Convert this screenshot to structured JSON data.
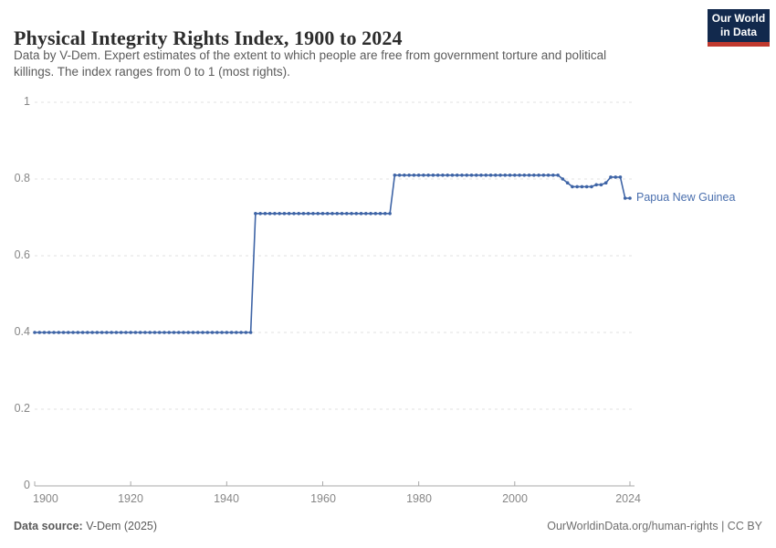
{
  "header": {
    "title": "Physical Integrity Rights Index, 1900 to 2024",
    "subtitle_line1": "Data by V-Dem. Expert estimates of the extent to which people are free from government torture and political",
    "subtitle_line2": "killings. The index ranges from 0 to 1 (most rights).",
    "logo": {
      "line1": "Our World",
      "line2": "in Data"
    }
  },
  "chart_data": {
    "type": "line",
    "title": "Physical Integrity Rights Index, 1900 to 2024",
    "xlabel": "",
    "ylabel": "",
    "x_range": [
      1900,
      2024
    ],
    "ylim": [
      0,
      1
    ],
    "grid": "dashed-horizontal",
    "legend_position": "end-of-line-label",
    "x_axis": {
      "ticks": [
        1900,
        1920,
        1940,
        1960,
        1980,
        2000,
        2024
      ],
      "labels": [
        "1900",
        "1920",
        "1940",
        "1960",
        "1980",
        "2000",
        "2024"
      ]
    },
    "y_axis": {
      "ticks": [
        1,
        0.8,
        0.6,
        0.4,
        0.2,
        0
      ],
      "labels": [
        "1",
        "0.8",
        "0.6",
        "0.4",
        "0.2",
        "0"
      ]
    },
    "series": [
      {
        "name": "Papua New Guinea",
        "color": "#3e64a6",
        "label_color": "#4a6fae",
        "x_start_year": 1900,
        "x_step_years": 1,
        "values": [
          0.4,
          0.4,
          0.4,
          0.4,
          0.4,
          0.4,
          0.4,
          0.4,
          0.4,
          0.4,
          0.4,
          0.4,
          0.4,
          0.4,
          0.4,
          0.4,
          0.4,
          0.4,
          0.4,
          0.4,
          0.4,
          0.4,
          0.4,
          0.4,
          0.4,
          0.4,
          0.4,
          0.4,
          0.4,
          0.4,
          0.4,
          0.4,
          0.4,
          0.4,
          0.4,
          0.4,
          0.4,
          0.4,
          0.4,
          0.4,
          0.4,
          0.4,
          0.4,
          0.4,
          0.4,
          0.4,
          0.71,
          0.71,
          0.71,
          0.71,
          0.71,
          0.71,
          0.71,
          0.71,
          0.71,
          0.71,
          0.71,
          0.71,
          0.71,
          0.71,
          0.71,
          0.71,
          0.71,
          0.71,
          0.71,
          0.71,
          0.71,
          0.71,
          0.71,
          0.71,
          0.71,
          0.71,
          0.71,
          0.71,
          0.71,
          0.81,
          0.81,
          0.81,
          0.81,
          0.81,
          0.81,
          0.81,
          0.81,
          0.81,
          0.81,
          0.81,
          0.81,
          0.81,
          0.81,
          0.81,
          0.81,
          0.81,
          0.81,
          0.81,
          0.81,
          0.81,
          0.81,
          0.81,
          0.81,
          0.81,
          0.81,
          0.81,
          0.81,
          0.81,
          0.81,
          0.81,
          0.81,
          0.81,
          0.81,
          0.81,
          0.8,
          0.79,
          0.78,
          0.78,
          0.78,
          0.78,
          0.78,
          0.785,
          0.785,
          0.79,
          0.805,
          0.805,
          0.805,
          0.75,
          0.75
        ]
      }
    ],
    "annotations": [
      {
        "text": "Papua New Guinea",
        "attached_to": "last-point"
      }
    ]
  },
  "footer": {
    "source_label": "Data source:",
    "source_value": " V-Dem (2025)",
    "credit": "OurWorldinData.org/human-rights | CC BY"
  },
  "colors": {
    "line": "#3e64a6",
    "gridline": "#e0e0e0",
    "axis": "#a8a8a8",
    "tick_label": "#878787",
    "logo_navy": "#12294d",
    "logo_red": "#c0392e"
  }
}
